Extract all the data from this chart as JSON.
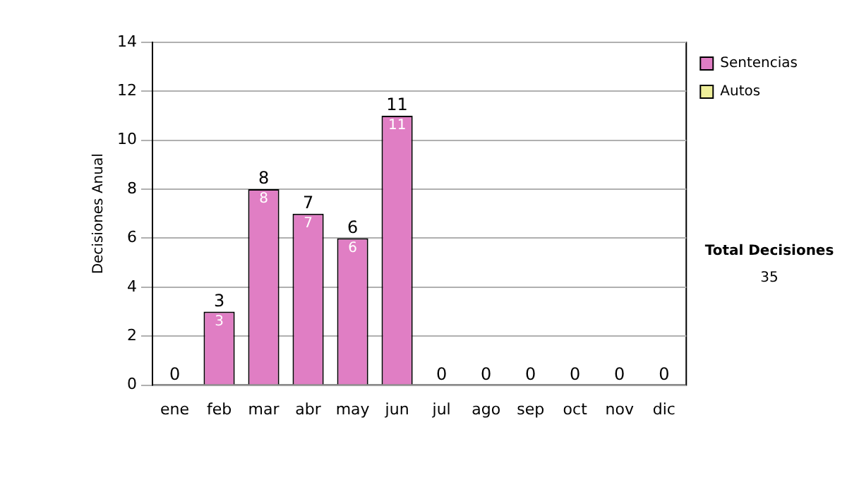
{
  "chart_data": {
    "type": "bar",
    "ylabel": "Decisiones Anual",
    "categories": [
      "ene",
      "feb",
      "mar",
      "abr",
      "may",
      "jun",
      "jul",
      "ago",
      "sep",
      "oct",
      "nov",
      "dic"
    ],
    "series": [
      {
        "name": "Sentencias",
        "color": "#e07ec4",
        "values": [
          0,
          3,
          8,
          7,
          6,
          11,
          0,
          0,
          0,
          0,
          0,
          0
        ],
        "value_labels": [
          null,
          "3",
          "8",
          "7",
          "6",
          "11",
          null,
          null,
          null,
          null,
          null,
          null
        ]
      },
      {
        "name": "Autos",
        "color": "#eeee9a",
        "values": [
          0,
          0,
          0,
          0,
          0,
          0,
          0,
          0,
          0,
          0,
          0,
          0
        ]
      }
    ],
    "stacked": true,
    "totals": [
      "0",
      "3",
      "8",
      "7",
      "6",
      "11",
      "0",
      "0",
      "0",
      "0",
      "0",
      "0"
    ],
    "ylim": [
      0,
      14
    ],
    "yticks": [
      0,
      2,
      4,
      6,
      8,
      10,
      12,
      14
    ],
    "grid": "y",
    "legend": "right",
    "annotations": [
      "Total Decisiones",
      "35"
    ]
  }
}
